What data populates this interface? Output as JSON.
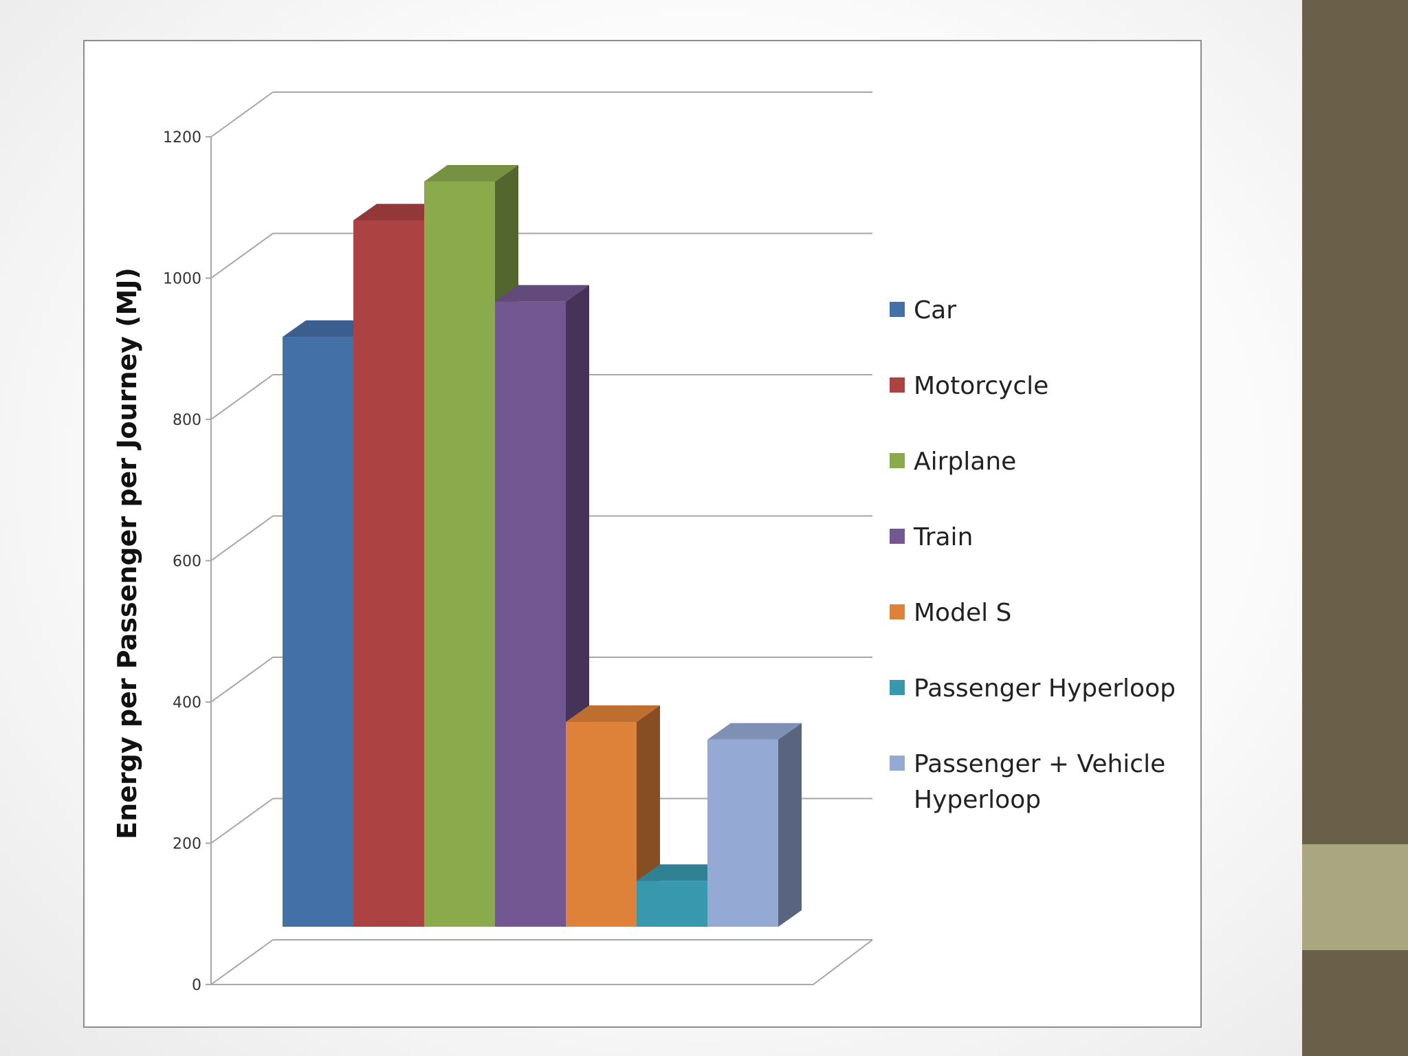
{
  "colors": {
    "panel_dark": "#6a5f48",
    "panel_light": "#aaa780"
  },
  "chart_data": {
    "type": "bar",
    "style": "3d-column",
    "categories": [
      "Car",
      "Motorcycle",
      "Airplane",
      "Train",
      "Model S",
      "Passenger Hyperloop",
      "Passenger + Vehicle Hyperloop"
    ],
    "values": [
      835,
      1000,
      1055,
      885,
      290,
      65,
      265
    ],
    "colors": [
      "#4470a8",
      "#ad4242",
      "#8aaa4c",
      "#735792",
      "#df8239",
      "#3898ae",
      "#94a9d3"
    ],
    "title": "",
    "xlabel": "",
    "ylabel": "Energy per Passenger per Journey (MJ)",
    "ylim": [
      0,
      1200
    ],
    "yticks": [
      0,
      200,
      400,
      600,
      800,
      1000,
      1200
    ],
    "grid": true,
    "legend": {
      "position": "right",
      "entries": [
        {
          "lines": [
            "Car"
          ]
        },
        {
          "lines": [
            "Motorcycle"
          ]
        },
        {
          "lines": [
            "Airplane"
          ]
        },
        {
          "lines": [
            "Train"
          ]
        },
        {
          "lines": [
            "Model S"
          ]
        },
        {
          "lines": [
            "Passenger Hyperloop"
          ]
        },
        {
          "lines": [
            "Passenger + Vehicle",
            "Hyperloop"
          ]
        }
      ]
    }
  }
}
